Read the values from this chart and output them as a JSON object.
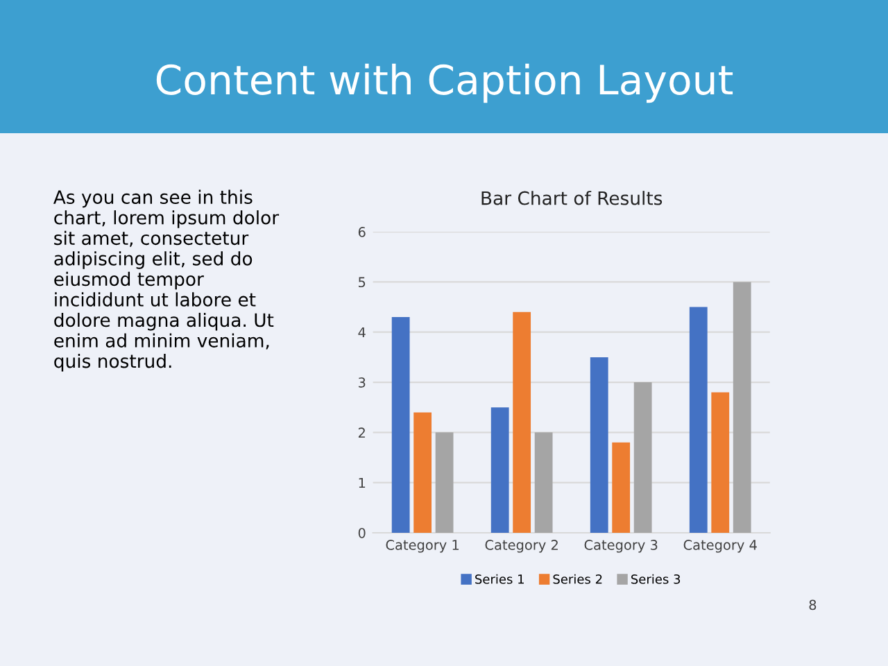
{
  "chart_data": {
    "type": "bar",
    "title": "Bar Chart of Results",
    "categories": [
      "Category 1",
      "Category 2",
      "Category 3",
      "Category 4"
    ],
    "series": [
      {
        "name": "Series 1",
        "color": "#4472c4",
        "values": [
          4.3,
          2.5,
          3.5,
          4.5
        ]
      },
      {
        "name": "Series 2",
        "color": "#ed7d31",
        "values": [
          2.4,
          4.4,
          1.8,
          2.8
        ]
      },
      {
        "name": "Series 3",
        "color": "#a5a5a5",
        "values": [
          2,
          2,
          3,
          5
        ]
      }
    ],
    "ylim": [
      0,
      6
    ],
    "yticks": [
      0,
      1,
      2,
      3,
      4,
      5,
      6
    ],
    "grid": "y",
    "legend": "bottom",
    "annotations": [
      "Content with Caption Layout",
      "As you can see in this\nchart, lorem ipsum dolor\nsit amet, consectetur\nadipiscing elit, sed do\neiusmod tempor\nincididunt ut labore et\ndolore magna aliqua. Ut\nenim ad minim veniam,\nquis nostrud.",
      "8"
    ]
  }
}
